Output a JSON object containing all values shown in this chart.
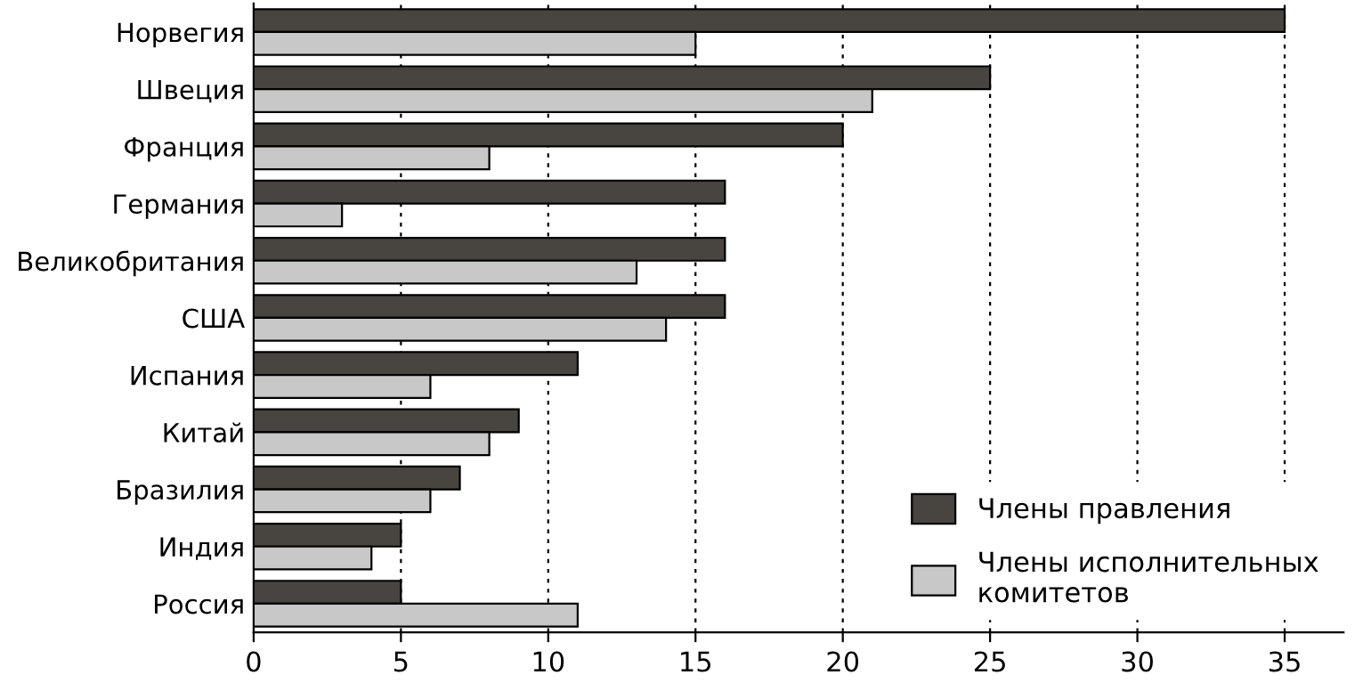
{
  "chart_data": {
    "type": "bar",
    "orientation": "horizontal",
    "categories": [
      "Норвегия",
      "Швеция",
      "Франция",
      "Германия",
      "Великобритания",
      "США",
      "Испания",
      "Китай",
      "Бразилия",
      "Индия",
      "Россия"
    ],
    "series": [
      {
        "name": "Члены правления",
        "color": "#48443f",
        "values": [
          35,
          25,
          20,
          16,
          16,
          16,
          11,
          9,
          7,
          5,
          5
        ]
      },
      {
        "name": "Члены исполнительных\nкомитетов",
        "color": "#c8c8c8",
        "values": [
          15,
          21,
          8,
          3,
          13,
          14,
          6,
          8,
          6,
          4,
          11
        ]
      }
    ],
    "xlim": [
      0,
      37
    ],
    "xticks": [
      0,
      5,
      10,
      15,
      20,
      25,
      30,
      35
    ],
    "grid": "x",
    "legend": "bottom right"
  }
}
